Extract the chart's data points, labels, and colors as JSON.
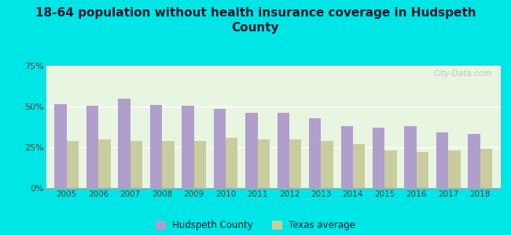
{
  "title": "18-64 population without health insurance coverage in Hudspeth\nCounty",
  "years": [
    2005,
    2006,
    2007,
    2008,
    2009,
    2010,
    2011,
    2012,
    2013,
    2014,
    2015,
    2016,
    2017,
    2018
  ],
  "hudspeth": [
    51.5,
    50.5,
    55.0,
    51.0,
    50.5,
    48.5,
    46.0,
    46.0,
    43.0,
    38.0,
    37.0,
    38.0,
    34.0,
    33.0
  ],
  "texas": [
    29.0,
    30.0,
    29.0,
    29.0,
    29.0,
    31.0,
    30.0,
    30.0,
    29.0,
    27.0,
    23.0,
    22.0,
    23.0,
    24.0
  ],
  "hudspeth_color": "#b09fcc",
  "texas_color": "#c8cc9f",
  "background_outer": "#00e5e5",
  "background_plot": "#e8f5e0",
  "ylim": [
    0,
    75
  ],
  "yticks": [
    0,
    25,
    50,
    75
  ],
  "ytick_labels": [
    "0%",
    "25%",
    "50%",
    "75%"
  ],
  "legend_hudspeth": "Hudspeth County",
  "legend_texas": "Texas average",
  "title_fontsize": 11,
  "bar_width": 0.38
}
